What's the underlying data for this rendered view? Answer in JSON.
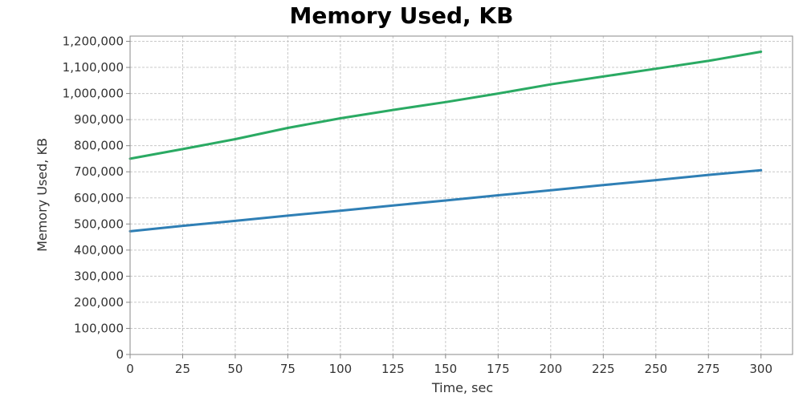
{
  "chart_data": {
    "type": "line",
    "title": "Memory Used, KB",
    "xlabel": "Time, sec",
    "ylabel": "Memory Used, KB",
    "xlim": [
      0,
      315
    ],
    "ylim": [
      0,
      1220000
    ],
    "xticks": [
      0,
      25,
      50,
      75,
      100,
      125,
      150,
      175,
      200,
      225,
      250,
      275,
      300
    ],
    "yticks": [
      0,
      100000,
      200000,
      300000,
      400000,
      500000,
      600000,
      700000,
      800000,
      900000,
      1000000,
      1100000,
      1200000
    ],
    "grid": true,
    "series": [
      {
        "color": "#2f7fb5",
        "x": [
          0,
          25,
          50,
          75,
          100,
          125,
          150,
          175,
          200,
          225,
          250,
          275,
          300
        ],
        "values": [
          472000,
          493000,
          512000,
          532000,
          551000,
          571000,
          590000,
          610000,
          629000,
          649000,
          668000,
          688000,
          706000
        ]
      },
      {
        "color": "#2aaa63",
        "x": [
          0,
          25,
          50,
          75,
          100,
          125,
          150,
          175,
          200,
          225,
          250,
          275,
          300
        ],
        "values": [
          750000,
          787000,
          825000,
          868000,
          905000,
          937000,
          967000,
          1000000,
          1035000,
          1065000,
          1095000,
          1125000,
          1160000
        ]
      }
    ]
  }
}
